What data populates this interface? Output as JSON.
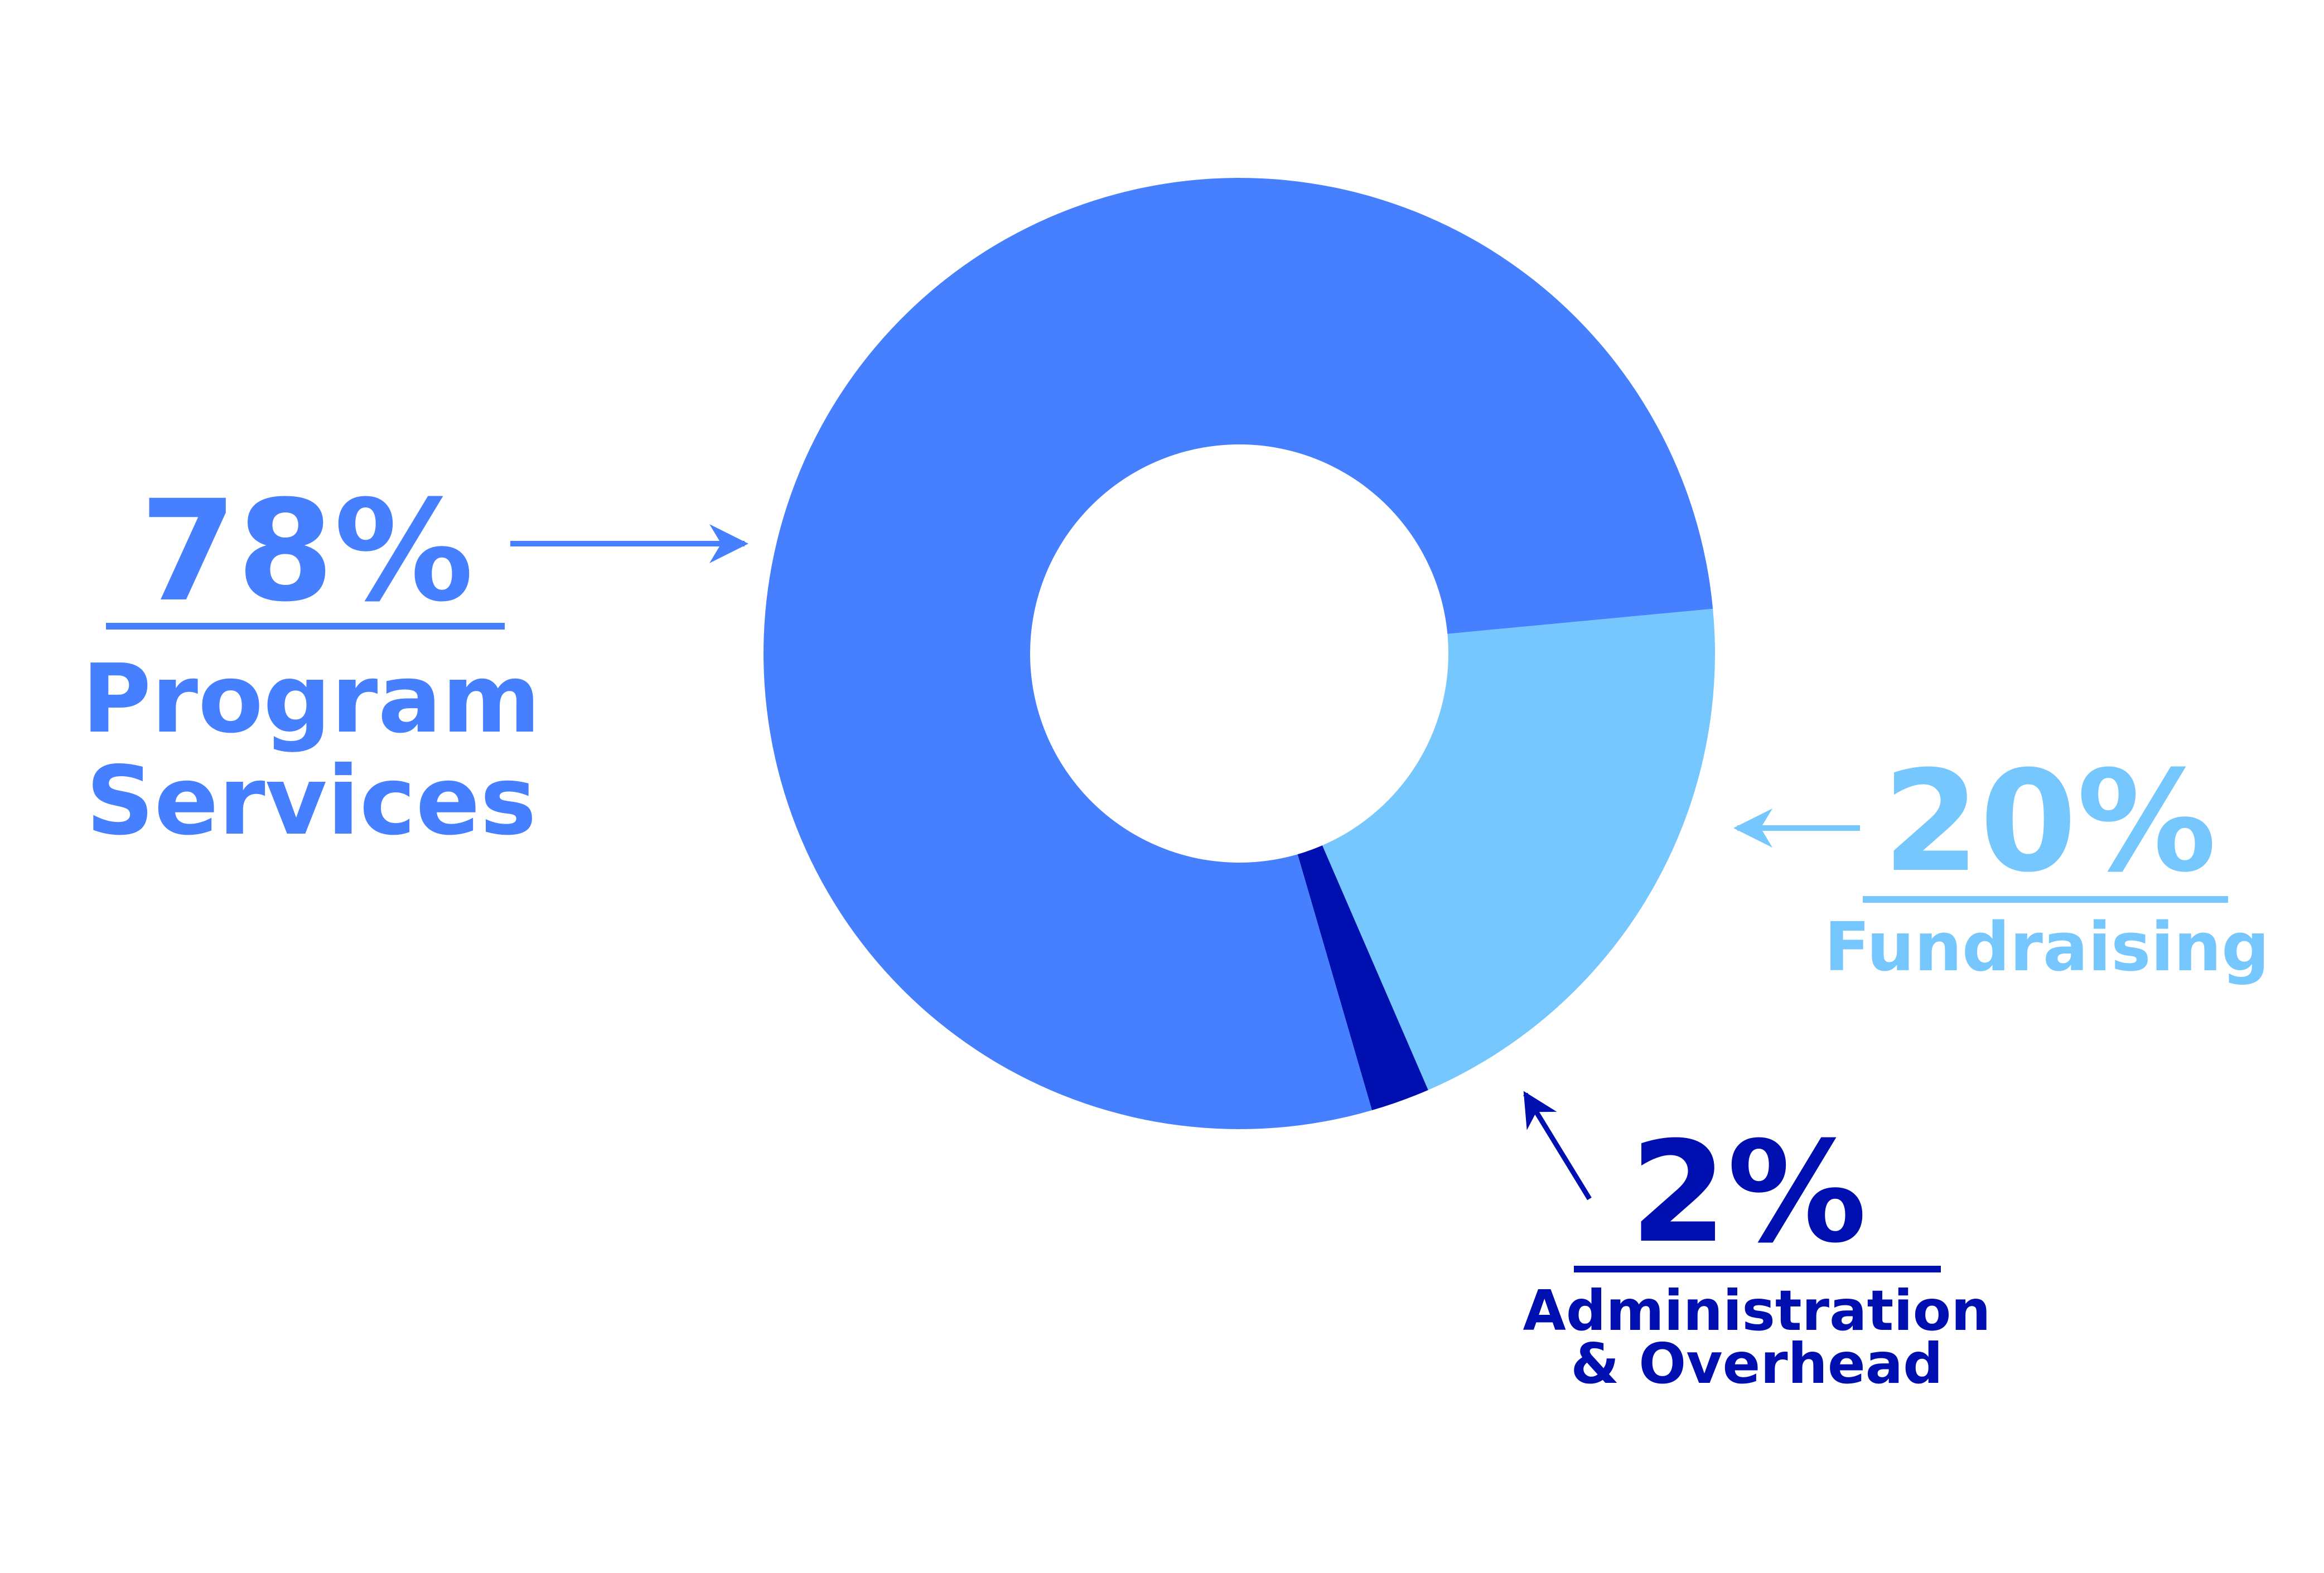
{
  "chart_data": {
    "type": "pie",
    "style": "donut",
    "legend": "none",
    "slices": [
      {
        "percent_label": "78%",
        "label_lines": [
          "Program",
          "Services"
        ],
        "value": 78,
        "color": "#4680fe"
      },
      {
        "percent_label": "20%",
        "label_lines": [
          "Fundraising"
        ],
        "value": 20,
        "color": "#75c7fd"
      },
      {
        "percent_label": "2%",
        "label_lines": [
          "Administration",
          "& Overhead"
        ],
        "value": 2,
        "color": "#000faf"
      }
    ]
  }
}
